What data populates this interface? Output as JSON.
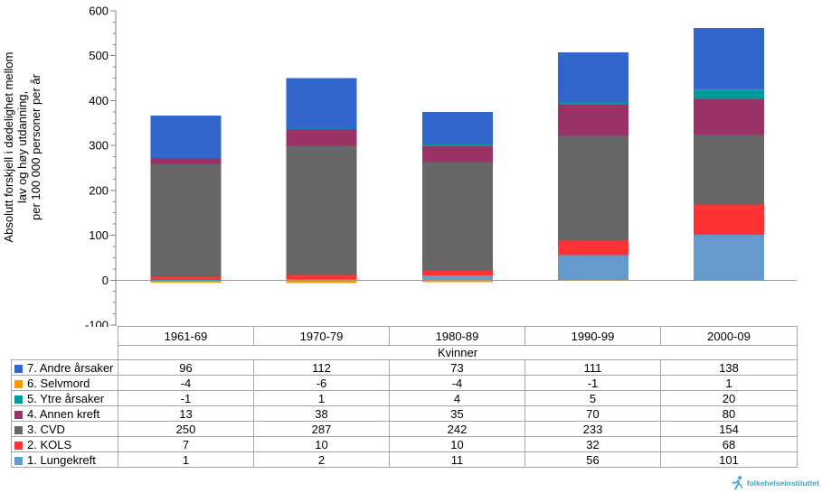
{
  "chart_data": {
    "type": "bar",
    "stacked": true,
    "title": "",
    "xlabel": "",
    "ylabel_lines": [
      "Absolutt forskjell i dødelighet mellom",
      "lav og høy utdanning,",
      "per 100 000 personer per år"
    ],
    "ylim": [
      -100,
      600
    ],
    "yticks": [
      600,
      500,
      400,
      300,
      200,
      100,
      0,
      -100
    ],
    "ytick_minor_step": 25,
    "grid": "zero-line-only",
    "legend_position": "table-left",
    "categories": [
      "1961-69",
      "1970-79",
      "1980-89",
      "1990-99",
      "2000-09"
    ],
    "group_label": "Kvinner",
    "series": [
      {
        "name": "1. Lungekreft",
        "color": "#6699CC",
        "values": [
          1,
          2,
          11,
          56,
          101
        ]
      },
      {
        "name": "2. KOLS",
        "color": "#FF3333",
        "values": [
          7,
          10,
          10,
          32,
          68
        ]
      },
      {
        "name": "3. CVD",
        "color": "#666666",
        "values": [
          250,
          287,
          242,
          233,
          154
        ]
      },
      {
        "name": "4. Annen kreft",
        "color": "#993366",
        "values": [
          13,
          38,
          35,
          70,
          80
        ]
      },
      {
        "name": "5. Ytre årsaker",
        "color": "#009999",
        "values": [
          -1,
          1,
          4,
          5,
          20
        ]
      },
      {
        "name": "6. Selvmord",
        "color": "#FF9900",
        "values": [
          -4,
          -6,
          -4,
          -1,
          1
        ]
      },
      {
        "name": "7. Andre årsaker",
        "color": "#3366CC",
        "values": [
          96,
          112,
          73,
          111,
          138
        ]
      }
    ],
    "table_row_order_top_to_bottom": [
      "7. Andre årsaker",
      "6. Selvmord",
      "5. Ytre årsaker",
      "4. Annen kreft",
      "3. CVD",
      "2. KOLS",
      "1. Lungekreft"
    ],
    "axis_color": "#808080",
    "zero_line_color": "#989898",
    "table_border_color": "#a6a6a6"
  },
  "logo": {
    "text": "folkehelseinstituttet",
    "color": "#3BA6C6"
  }
}
